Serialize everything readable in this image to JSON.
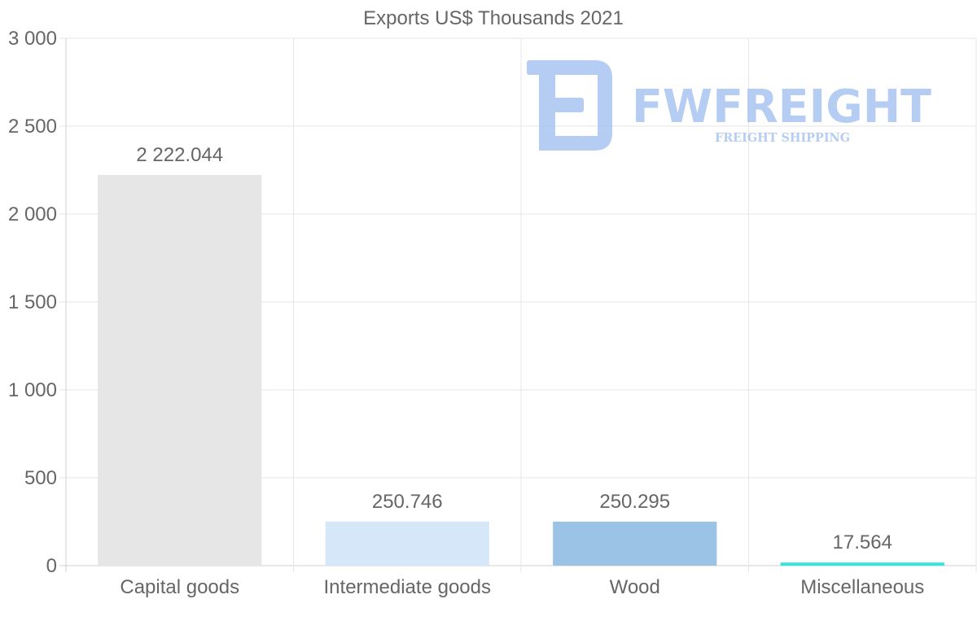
{
  "chart_data": {
    "type": "bar",
    "title": "Exports US$ Thousands 2021",
    "categories": [
      "Capital goods",
      "Intermediate goods",
      "Wood",
      "Miscellaneous"
    ],
    "values": [
      2222.044,
      250.746,
      250.295,
      17.564
    ],
    "value_labels": [
      "2 222.044",
      "250.746",
      "250.295",
      "17.564"
    ],
    "colors": [
      "#e6e6e6",
      "#d6e7fa",
      "#9bc3e6",
      "#2ee8e0"
    ],
    "ylim": [
      0,
      3000
    ],
    "yticks": [
      0,
      500,
      1000,
      1500,
      2000,
      2500,
      3000
    ],
    "ytick_labels": [
      "0",
      "500",
      "1 000",
      "1 500",
      "2 000",
      "2 500",
      "3 000"
    ],
    "xlabel": "",
    "ylabel": "",
    "grid": true,
    "legend": "none"
  },
  "watermark": {
    "brand": "FWFREIGHT",
    "tagline": "FREIGHT SHIPPING",
    "color": "#a9c5f0"
  }
}
